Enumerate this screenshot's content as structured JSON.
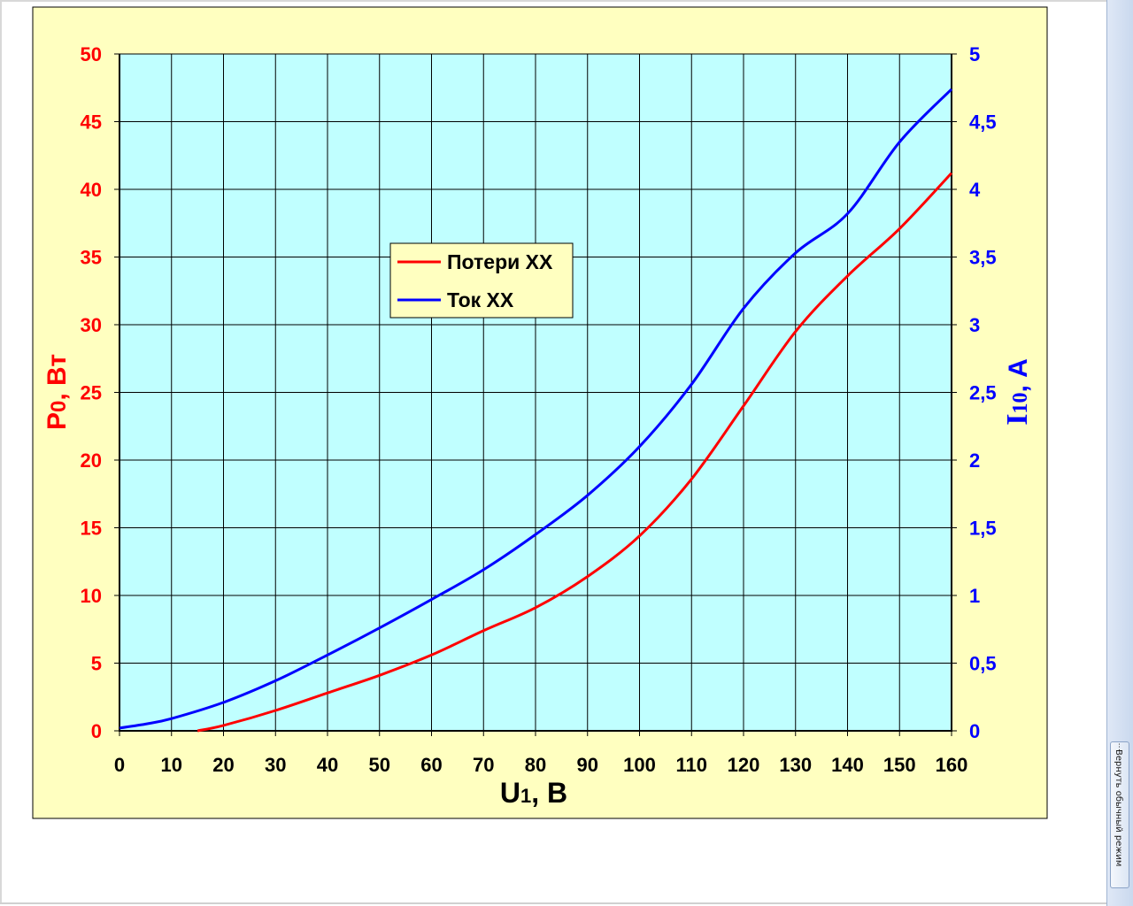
{
  "side_tab": {
    "label": "Вернуть обычный режим",
    "glyph": "⋮"
  },
  "colors": {
    "chart_area": "#FFFFC0",
    "plot_area": "#C0FFFF",
    "grid": "#000000",
    "left_axis": "#FF0000",
    "right_axis": "#0000FF",
    "series_loss": "#FF0000",
    "series_current": "#0000FF"
  },
  "chart_data": {
    "type": "line",
    "title": "",
    "xlabel": {
      "main": "U",
      "sub": "1",
      "rest": ", В"
    },
    "ylabel_left": {
      "main": "P",
      "sub": "0",
      "rest": ", Вт"
    },
    "ylabel_right": {
      "main": "I",
      "sub": "10",
      "rest": ", А"
    },
    "xlim": [
      0,
      160
    ],
    "ylim_left": [
      0,
      50
    ],
    "ylim_right": [
      0,
      5
    ],
    "x_ticks": [
      "0",
      "10",
      "20",
      "30",
      "40",
      "50",
      "60",
      "70",
      "80",
      "90",
      "100",
      "110",
      "120",
      "130",
      "140",
      "150",
      "160"
    ],
    "y_left_ticks": [
      "0",
      "5",
      "10",
      "15",
      "20",
      "25",
      "30",
      "35",
      "40",
      "45",
      "50"
    ],
    "y_right_ticks": [
      "0",
      "0,5",
      "1",
      "1,5",
      "2",
      "2,5",
      "3",
      "3,5",
      "4",
      "4,5",
      "5"
    ],
    "grid": true,
    "legend": {
      "position": "upper-left-center"
    },
    "series": [
      {
        "name": "Потери ХХ",
        "axis": "left",
        "x": [
          15,
          20,
          30,
          40,
          50,
          60,
          70,
          80,
          90,
          100,
          110,
          120,
          130,
          140,
          150,
          160
        ],
        "y": [
          0,
          0.4,
          1.5,
          2.8,
          4.1,
          5.6,
          7.4,
          9.1,
          11.4,
          14.4,
          18.6,
          24.0,
          29.5,
          33.6,
          37.1,
          41.2
        ]
      },
      {
        "name": "Ток ХХ",
        "axis": "right",
        "x": [
          0,
          5,
          10,
          20,
          30,
          40,
          50,
          60,
          70,
          80,
          90,
          100,
          110,
          120,
          130,
          140,
          150,
          160
        ],
        "y": [
          0.02,
          0.05,
          0.09,
          0.21,
          0.37,
          0.56,
          0.76,
          0.97,
          1.19,
          1.45,
          1.74,
          2.1,
          2.56,
          3.12,
          3.53,
          3.82,
          4.35,
          4.74
        ]
      }
    ]
  }
}
